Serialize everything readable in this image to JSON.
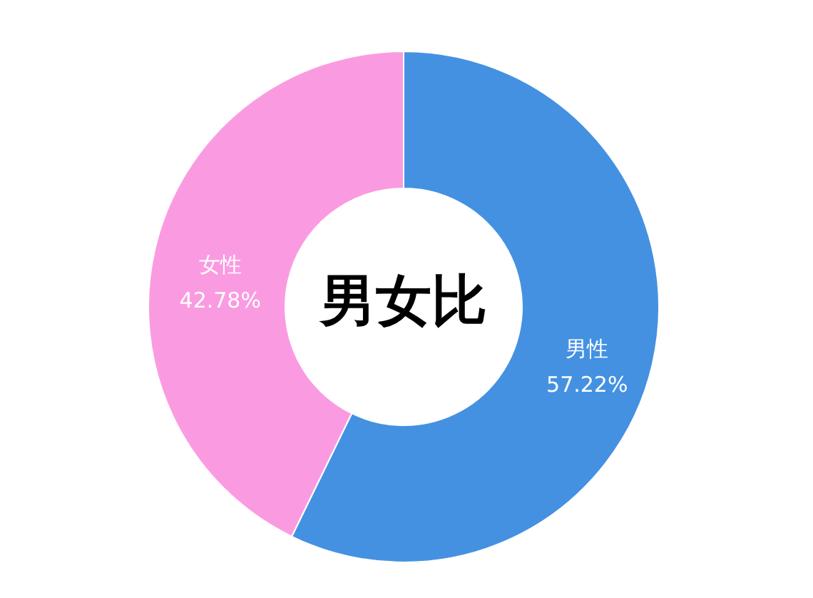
{
  "chart_data": {
    "type": "donut",
    "title": "男女比",
    "categories": [
      "男性",
      "女性"
    ],
    "values": [
      57.22,
      42.78
    ],
    "colors": [
      "#4491e2",
      "#fa9be1"
    ],
    "value_labels": [
      "57.22%",
      "42.78%"
    ]
  }
}
